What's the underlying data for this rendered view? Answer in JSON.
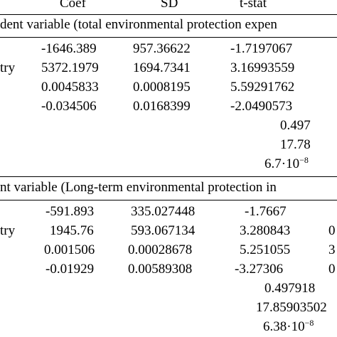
{
  "header": {
    "coef": "Coef",
    "sd": "SD",
    "tstat": "t-stat"
  },
  "panel1": {
    "title": "dent variable (total environmental protection expen",
    "row_label": "try",
    "coef": [
      "-1646.389",
      "5372.1979",
      "0.0045833",
      "-0.034506"
    ],
    "sd": [
      "957.36622",
      "1694.7341",
      "0.0008195",
      "0.0168399"
    ],
    "tstat": [
      "-1.7197067",
      "3.16993559",
      "5.59291762",
      "-2.0490573"
    ],
    "r2": "0.497",
    "fstat": "17.78",
    "pvalue_base": "6.7·10",
    "pvalue_exp": "−8"
  },
  "panel2": {
    "title": "nt variable (Long-term environmental protection in",
    "row_label": "try",
    "coef": [
      "-591.893",
      "1945.76",
      "0.001506",
      "-0.01929"
    ],
    "sd": [
      "335.027448",
      "593.067134",
      "0.00028678",
      "0.00589308"
    ],
    "tstat": [
      "-1.7667",
      "3.280843",
      "5.251055",
      "-3.27306"
    ],
    "extra": [
      "0",
      "3",
      "0"
    ],
    "r2": "0.497918",
    "fstat": "17.85903502",
    "pvalue_base": "6.38·10",
    "pvalue_exp": "−8"
  }
}
